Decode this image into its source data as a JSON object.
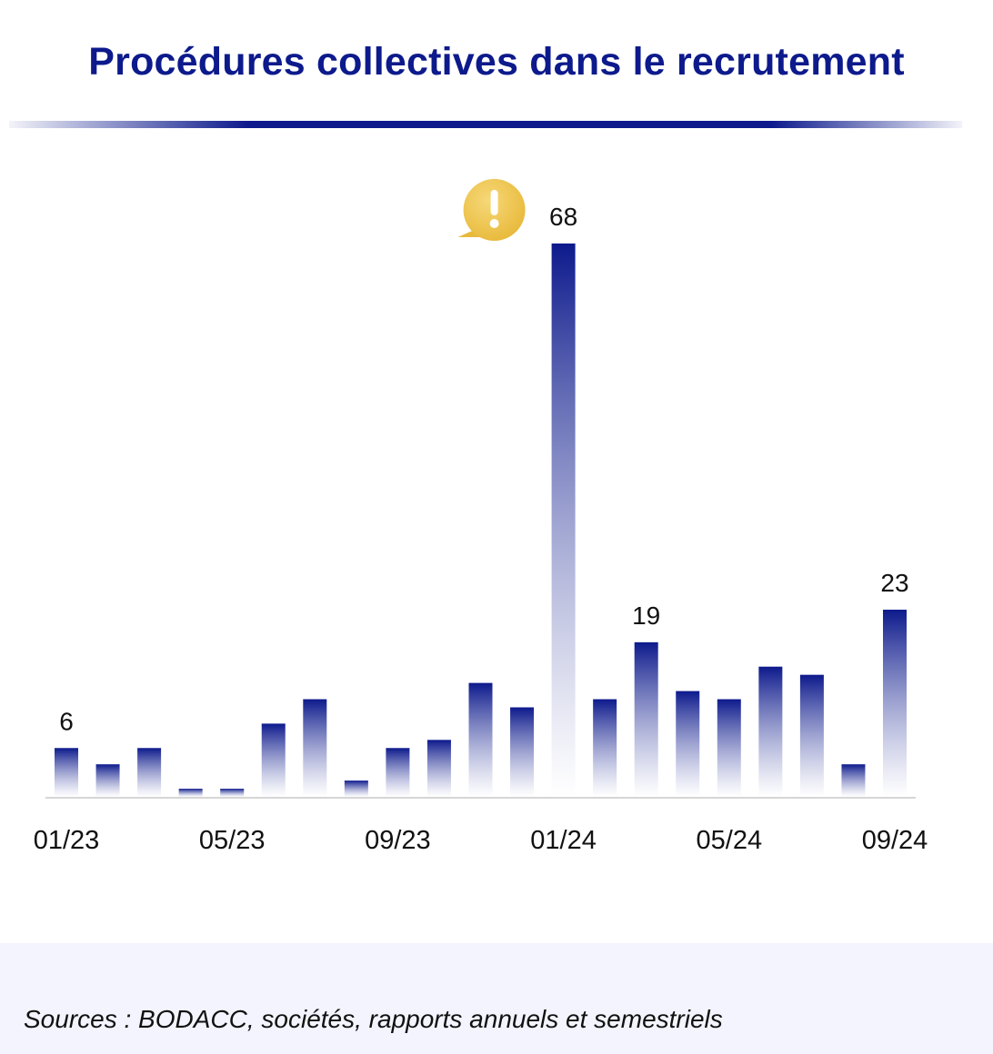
{
  "title": "Procédures collectives dans le recrutement",
  "source": "Sources : BODACC, sociétés, rapports annuels et semestriels",
  "colors": {
    "bar_top": "#0d1a8c",
    "bar_bottom": "#ffffff",
    "title": "#0d1a8c",
    "alert_icon": "#e8b93a"
  },
  "alert_icon": "exclamation-speech-bubble-icon",
  "chart_data": {
    "type": "bar",
    "title": "Procédures collectives dans le recrutement",
    "xlabel": "",
    "ylabel": "",
    "ylim": [
      0,
      68
    ],
    "grid": false,
    "categories": [
      "01/23",
      "02/23",
      "03/23",
      "04/23",
      "05/23",
      "06/23",
      "07/23",
      "08/23",
      "09/23",
      "10/23",
      "11/23",
      "12/23",
      "01/24",
      "02/24",
      "03/24",
      "04/24",
      "05/24",
      "06/24",
      "07/24",
      "08/24",
      "09/24"
    ],
    "values": [
      6,
      4,
      6,
      1,
      1,
      9,
      12,
      2,
      6,
      7,
      14,
      11,
      68,
      12,
      19,
      13,
      12,
      16,
      15,
      4,
      23
    ],
    "x_tick_labels": [
      "01/23",
      "05/23",
      "09/23",
      "01/24",
      "05/24",
      "09/24"
    ],
    "data_labels": [
      {
        "category": "01/23",
        "text": "6"
      },
      {
        "category": "01/24",
        "text": "68"
      },
      {
        "category": "03/24",
        "text": "19"
      },
      {
        "category": "09/24",
        "text": "23"
      }
    ],
    "annotations": [
      {
        "category": "01/24",
        "type": "alert-icon"
      }
    ]
  }
}
